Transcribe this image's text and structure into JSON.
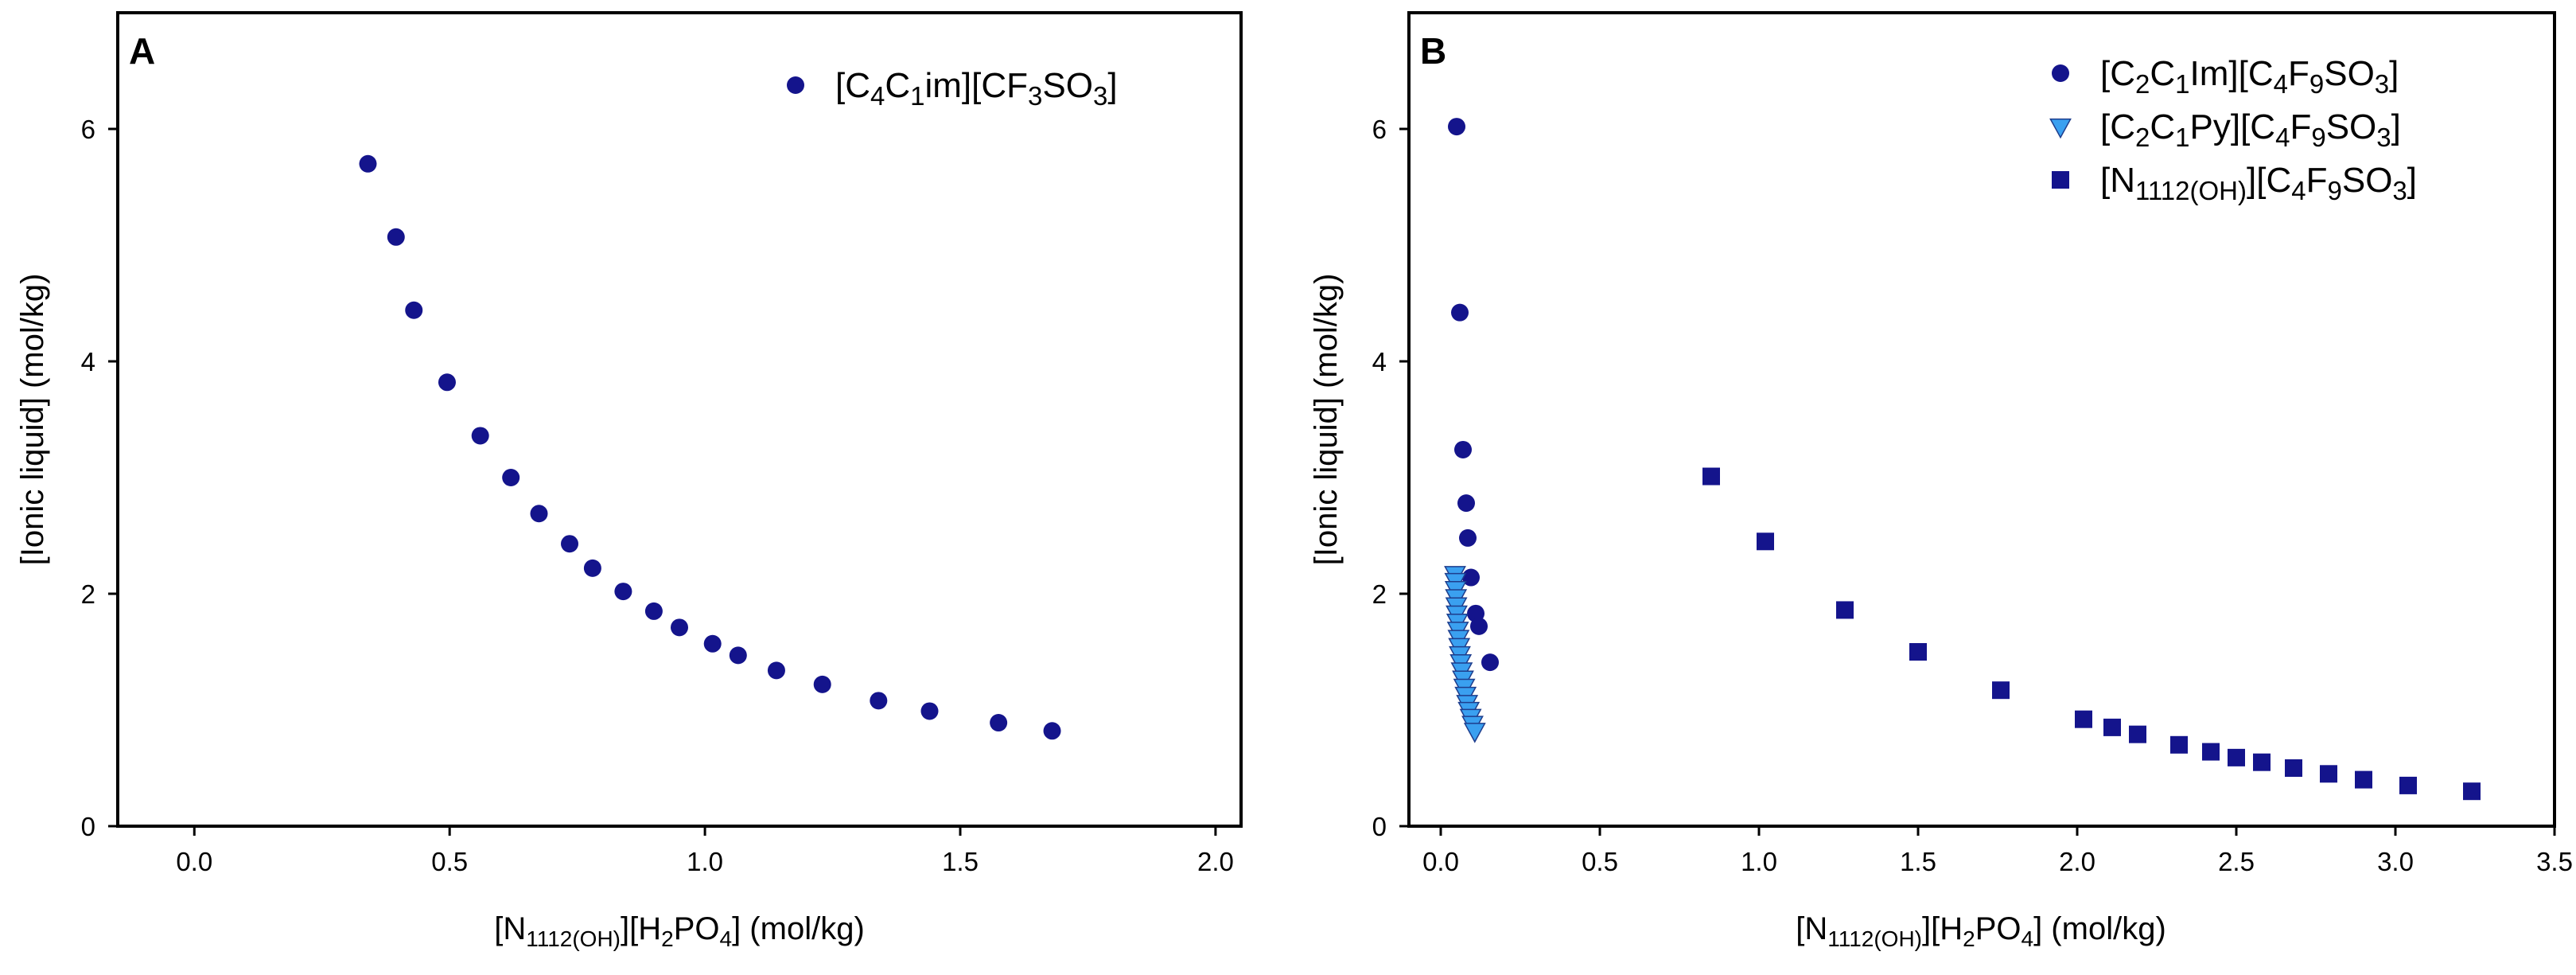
{
  "colors": {
    "navy": "#14148c",
    "light_blue": "#3aa0f0",
    "triangle_stroke": "#1e3d8c"
  },
  "chart_data": [
    {
      "type": "scatter",
      "panel_label": "A",
      "xlabel": {
        "main": "[N",
        "sub1": "1112(OH)",
        "mid": "][H",
        "sub2": "2",
        "rest": "PO",
        "sub3": "4",
        "end": "] (mol/kg)"
      },
      "ylabel": "[Ionic liquid] (mol/kg)",
      "xlim": [
        -0.15,
        2.05
      ],
      "ylim": [
        0,
        7
      ],
      "xticks": [
        "0.0",
        "0.5",
        "1.0",
        "1.5",
        "2.0"
      ],
      "xtick_values": [
        0.0,
        0.5,
        1.0,
        1.5,
        2.0
      ],
      "yticks": [
        "0",
        "2",
        "4",
        "6"
      ],
      "ytick_values": [
        0,
        2,
        4,
        6
      ],
      "legend_position": "top-right",
      "series": [
        {
          "name": "[C4C1im][CF3SO3]",
          "legend_parts": [
            [
              "[C",
              ""
            ],
            [
              "4",
              "sub"
            ],
            [
              "C",
              ""
            ],
            [
              "1",
              "sub"
            ],
            [
              "im][CF",
              ""
            ],
            [
              "3",
              "sub"
            ],
            [
              "SO",
              ""
            ],
            [
              "3",
              "sub"
            ],
            [
              "]",
              ""
            ]
          ],
          "marker": "circle",
          "color": "#14148c",
          "x": [
            0.34,
            0.395,
            0.43,
            0.495,
            0.56,
            0.62,
            0.675,
            0.735,
            0.78,
            0.84,
            0.9,
            0.95,
            1.015,
            1.065,
            1.14,
            1.23,
            1.34,
            1.44,
            1.575,
            1.68
          ],
          "y": [
            5.7,
            5.07,
            4.44,
            3.82,
            3.36,
            3.0,
            2.69,
            2.43,
            2.22,
            2.02,
            1.85,
            1.71,
            1.57,
            1.47,
            1.34,
            1.22,
            1.08,
            0.99,
            0.89,
            0.82
          ]
        }
      ]
    },
    {
      "type": "scatter",
      "panel_label": "B",
      "xlabel": {
        "main": "[N",
        "sub1": "1112(OH)",
        "mid": "][H",
        "sub2": "2",
        "rest": "PO",
        "sub3": "4",
        "end": "] (mol/kg)"
      },
      "ylabel": "[Ionic liquid] (mol/kg)",
      "xlim": [
        -0.1,
        3.5
      ],
      "ylim": [
        0,
        7
      ],
      "xticks": [
        "0.0",
        "0.5",
        "1.0",
        "1.5",
        "2.0",
        "2.5",
        "3.0",
        "3.5"
      ],
      "xtick_values": [
        0.0,
        0.5,
        1.0,
        1.5,
        2.0,
        2.5,
        3.0,
        3.5
      ],
      "yticks": [
        "0",
        "2",
        "4",
        "6"
      ],
      "ytick_values": [
        0,
        2,
        4,
        6
      ],
      "legend_position": "top-right",
      "series": [
        {
          "name": "[C2C1Im][C4F9SO3]",
          "legend_parts": [
            [
              "[C",
              ""
            ],
            [
              "2",
              "sub"
            ],
            [
              "C",
              ""
            ],
            [
              "1",
              "sub"
            ],
            [
              "Im][C",
              ""
            ],
            [
              "4",
              "sub"
            ],
            [
              "F",
              ""
            ],
            [
              "9",
              "sub"
            ],
            [
              "SO",
              ""
            ],
            [
              "3",
              "sub"
            ],
            [
              "]",
              ""
            ]
          ],
          "marker": "circle",
          "color": "#14148c",
          "x": [
            0.05,
            0.06,
            0.07,
            0.08,
            0.085,
            0.095,
            0.11,
            0.12,
            0.155
          ],
          "y": [
            6.02,
            4.42,
            3.24,
            2.78,
            2.48,
            2.14,
            1.83,
            1.72,
            1.41
          ]
        },
        {
          "name": "[C2C1Py][C4F9SO3]",
          "legend_parts": [
            [
              "[C",
              ""
            ],
            [
              "2",
              "sub"
            ],
            [
              "C",
              ""
            ],
            [
              "1",
              "sub"
            ],
            [
              "Py][C",
              ""
            ],
            [
              "4",
              "sub"
            ],
            [
              "F",
              ""
            ],
            [
              "9",
              "sub"
            ],
            [
              "SO",
              ""
            ],
            [
              "3",
              "sub"
            ],
            [
              "]",
              ""
            ]
          ],
          "marker": "triangle-down",
          "color": "#3aa0f0",
          "x": [
            0.045,
            0.046,
            0.047,
            0.048,
            0.049,
            0.05,
            0.052,
            0.054,
            0.056,
            0.058,
            0.06,
            0.063,
            0.066,
            0.07,
            0.074,
            0.078,
            0.083,
            0.088,
            0.094,
            0.1,
            0.107
          ],
          "y": [
            2.17,
            2.11,
            2.04,
            1.97,
            1.9,
            1.83,
            1.76,
            1.69,
            1.62,
            1.55,
            1.48,
            1.41,
            1.34,
            1.27,
            1.2,
            1.13,
            1.06,
            1.0,
            0.94,
            0.88,
            0.82
          ]
        },
        {
          "name": "[N1112(OH)][C4F9SO3]",
          "legend_parts": [
            [
              "[N",
              ""
            ],
            [
              "1112(OH)",
              "sub"
            ],
            [
              "][C",
              ""
            ],
            [
              "4",
              "sub"
            ],
            [
              "F",
              ""
            ],
            [
              "9",
              "sub"
            ],
            [
              "SO",
              ""
            ],
            [
              "3",
              "sub"
            ],
            [
              "]",
              ""
            ]
          ],
          "marker": "square",
          "color": "#14148c",
          "x": [
            0.85,
            1.02,
            1.27,
            1.5,
            1.76,
            2.02,
            2.11,
            2.19,
            2.32,
            2.42,
            2.5,
            2.58,
            2.68,
            2.79,
            2.9,
            3.04,
            3.24
          ],
          "y": [
            3.01,
            2.45,
            1.86,
            1.5,
            1.17,
            0.92,
            0.85,
            0.79,
            0.7,
            0.64,
            0.59,
            0.55,
            0.5,
            0.45,
            0.4,
            0.35,
            0.3
          ]
        }
      ]
    }
  ]
}
